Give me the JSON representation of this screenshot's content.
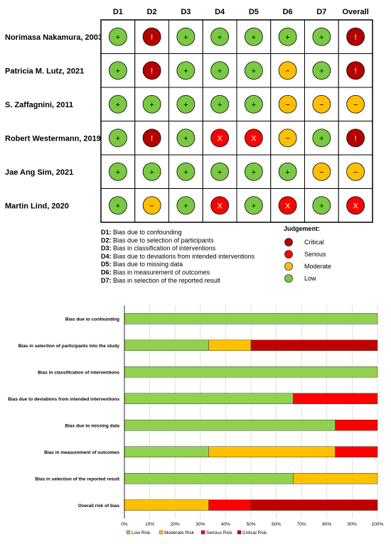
{
  "colors": {
    "low": "#7ac943",
    "moderate": "#ffbf00",
    "serious": "#ff0000",
    "critical": "#b50000",
    "summary_low": "#92d050",
    "summary_moderate": "#ffc000",
    "summary_serious": "#ff0000",
    "summary_critical": "#c00000"
  },
  "traffic_light": {
    "domains": [
      "D1",
      "D2",
      "D3",
      "D4",
      "D5",
      "D6",
      "D7",
      "Overall"
    ],
    "studies": [
      {
        "name": "Norimasa Nakamura, 2003",
        "judgements": [
          "low",
          "critical",
          "low",
          "low",
          "low",
          "low",
          "low",
          "critical"
        ]
      },
      {
        "name": "Patricia M. Lutz, 2021",
        "judgements": [
          "low",
          "critical",
          "low",
          "low",
          "low",
          "moderate",
          "low",
          "critical"
        ]
      },
      {
        "name": "S. Zaffagnini, 2011",
        "judgements": [
          "low",
          "low",
          "low",
          "low",
          "low",
          "moderate",
          "moderate",
          "moderate"
        ]
      },
      {
        "name": "Robert Westermann, 2019",
        "judgements": [
          "low",
          "critical",
          "low",
          "serious",
          "serious",
          "moderate",
          "low",
          "critical"
        ]
      },
      {
        "name": "Jae Ang Sim, 2021",
        "judgements": [
          "low",
          "low",
          "low",
          "low",
          "low",
          "low",
          "moderate",
          "moderate"
        ]
      },
      {
        "name": "Martin Lind, 2020",
        "judgements": [
          "low",
          "moderate",
          "low",
          "serious",
          "low",
          "serious",
          "low",
          "serious"
        ]
      }
    ],
    "symbols": {
      "low": "+",
      "moderate": "−",
      "serious": "X",
      "critical": "!"
    },
    "domain_key": [
      {
        "code": "D1:",
        "text": "Bias due to confounding"
      },
      {
        "code": "D2:",
        "text": "Bias due to selection of participants"
      },
      {
        "code": "D3:",
        "text": "Bias in classification of interventions"
      },
      {
        "code": "D4:",
        "text": "Bias due to deviations from intended interventions"
      },
      {
        "code": "D5:",
        "text": "Bias due to missing data"
      },
      {
        "code": "D6:",
        "text": "Bias in measurement of outcomes"
      },
      {
        "code": "D7:",
        "text": "Bias in selection of the reported result"
      }
    ],
    "judgement_legend": {
      "title": "Judgement:",
      "items": [
        {
          "key": "critical",
          "label": "Critical"
        },
        {
          "key": "serious",
          "label": "Serious"
        },
        {
          "key": "moderate",
          "label": "Moderate"
        },
        {
          "key": "low",
          "label": "Low"
        }
      ]
    }
  },
  "chart_data": {
    "type": "bar",
    "orientation": "horizontal",
    "stacked": true,
    "categories": [
      "Bias due to confounding",
      "Bias in selection of participants into the study",
      "Bias in classification of interventions",
      "Bias due to deviations from intended interventions",
      "Bias due to missing data",
      "Bias in measurement of outcomes",
      "Bias in selection of the reported result",
      "Overall risk of bias"
    ],
    "series": [
      {
        "name": "Low Risk",
        "key": "summary_low",
        "values": [
          100,
          33.3,
          100,
          66.7,
          83.3,
          33.3,
          66.7,
          0
        ]
      },
      {
        "name": "Moderate Risk",
        "key": "summary_moderate",
        "values": [
          0,
          16.7,
          0,
          0,
          0,
          50,
          33.3,
          33.3
        ]
      },
      {
        "name": "Serious Risk",
        "key": "summary_serious",
        "values": [
          0,
          0,
          0,
          33.3,
          16.7,
          16.7,
          0,
          16.7
        ]
      },
      {
        "name": "Critical Risk",
        "key": "summary_critical",
        "values": [
          0,
          50,
          0,
          0,
          0,
          0,
          0,
          50
        ]
      }
    ],
    "xlim": [
      0,
      100
    ],
    "xticks": [
      "0%",
      "10%",
      "20%",
      "30%",
      "40%",
      "50%",
      "60%",
      "70%",
      "80%",
      "90%",
      "100%"
    ],
    "grid": true,
    "legend_position": "bottom"
  }
}
